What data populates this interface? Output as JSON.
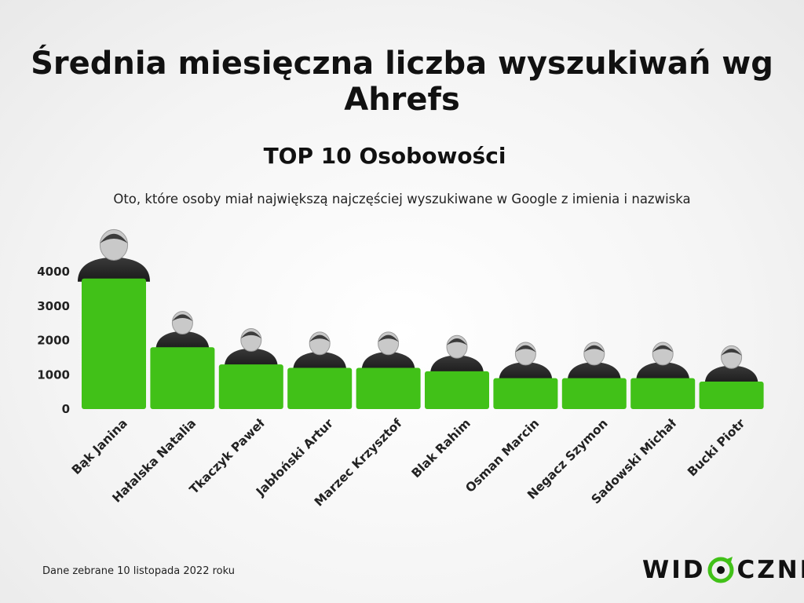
{
  "chart_data": {
    "type": "bar",
    "title": "Średnia miesięczna liczba wyszukiwań wg Ahrefs",
    "subtitle": "TOP 10 Osobowości",
    "description": "Oto, które osoby miał największą najczęściej wyszukiwane w Google z imienia i nazwiska",
    "categories": [
      "Bąk Janina",
      "Hałalska Natalia",
      "Tkaczyk Paweł",
      "Jabłoński Artur",
      "Marzec Krzysztof",
      "Blak Rahim",
      "Osman Marcin",
      "Negacz Szymon",
      "Sadowski Michał",
      "Bucki Piotr"
    ],
    "values": [
      3800,
      1800,
      1300,
      1200,
      1200,
      1100,
      900,
      900,
      900,
      800
    ],
    "ylim": [
      0,
      4000
    ],
    "yticks": [
      0,
      1000,
      2000,
      3000,
      4000
    ],
    "grid": false,
    "bar_color": "#41c118"
  },
  "footer": {
    "source_note": "Dane zebrane 10 listopada 2022 roku",
    "logo_left": "WID",
    "logo_right": "CZNI"
  }
}
